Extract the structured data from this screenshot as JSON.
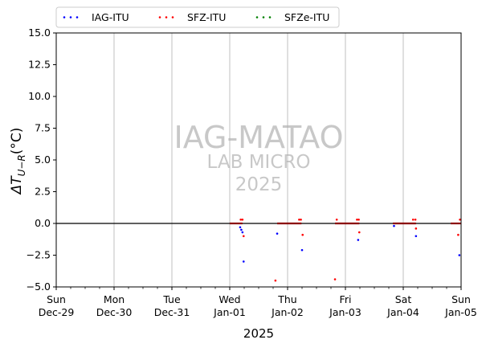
{
  "chart_data": {
    "type": "scatter",
    "title": "",
    "xlabel": "2025",
    "ylabel": "ΔT",
    "ylabel_sub": "U−R",
    "ylabel_unit": "(°C)",
    "xlim": [
      0,
      7
    ],
    "ylim": [
      -5,
      15
    ],
    "yticks": [
      -5.0,
      -2.5,
      0.0,
      2.5,
      5.0,
      7.5,
      10.0,
      12.5,
      15.0
    ],
    "ytick_labels": [
      "−5.0",
      "−2.5",
      "0.0",
      "2.5",
      "5.0",
      "7.5",
      "10.0",
      "12.5",
      "15.0"
    ],
    "xticks": [
      {
        "x": 0,
        "day": "Sun",
        "date": "Dec-29"
      },
      {
        "x": 1,
        "day": "Mon",
        "date": "Dec-30"
      },
      {
        "x": 2,
        "day": "Tue",
        "date": "Dec-31"
      },
      {
        "x": 3,
        "day": "Wed",
        "date": "Jan-01"
      },
      {
        "x": 4,
        "day": "Thu",
        "date": "Jan-02"
      },
      {
        "x": 5,
        "day": "Fri",
        "date": "Jan-03"
      },
      {
        "x": 6,
        "day": "Sat",
        "date": "Jan-04"
      },
      {
        "x": 7,
        "day": "Sun",
        "date": "Jan-05"
      }
    ],
    "grid": "vertical",
    "zero_line": 0,
    "legend": "top",
    "watermark": {
      "line1": "IAG-MATAO",
      "line2": "LAB MICRO",
      "line3": "2025"
    },
    "series": [
      {
        "name": "IAG-ITU",
        "color": "#0000ff",
        "points": [
          [
            3.18,
            -0.3
          ],
          [
            3.2,
            -0.5
          ],
          [
            3.22,
            -0.7
          ],
          [
            3.24,
            -3.0
          ],
          [
            3.82,
            -0.8
          ],
          [
            4.25,
            -2.1
          ],
          [
            5.22,
            -1.3
          ],
          [
            5.84,
            -0.2
          ],
          [
            6.22,
            -1.0
          ],
          [
            6.97,
            -2.5
          ]
        ]
      },
      {
        "name": "SFZ-ITU",
        "color": "#ff0000",
        "points": [
          [
            3.19,
            0.3
          ],
          [
            3.22,
            0.3
          ],
          [
            3.24,
            -1.0
          ],
          [
            3.79,
            -4.5
          ],
          [
            4.2,
            0.3
          ],
          [
            4.23,
            0.3
          ],
          [
            4.26,
            -0.9
          ],
          [
            4.82,
            -4.4
          ],
          [
            4.85,
            0.3
          ],
          [
            5.2,
            0.3
          ],
          [
            5.23,
            0.3
          ],
          [
            5.24,
            -0.7
          ],
          [
            6.17,
            0.3
          ],
          [
            6.21,
            0.3
          ],
          [
            6.22,
            -0.4
          ],
          [
            6.95,
            -0.9
          ],
          [
            6.98,
            0.3
          ]
        ]
      },
      {
        "name": "SFZe-ITU",
        "color": "#008000",
        "points": []
      }
    ],
    "near_zero_segments": [
      {
        "x0": 3.0,
        "x1": 3.22
      },
      {
        "x0": 3.82,
        "x1": 4.24
      },
      {
        "x0": 4.82,
        "x1": 5.24
      },
      {
        "x0": 5.82,
        "x1": 6.22
      },
      {
        "x0": 6.82,
        "x1": 7.0
      }
    ]
  }
}
